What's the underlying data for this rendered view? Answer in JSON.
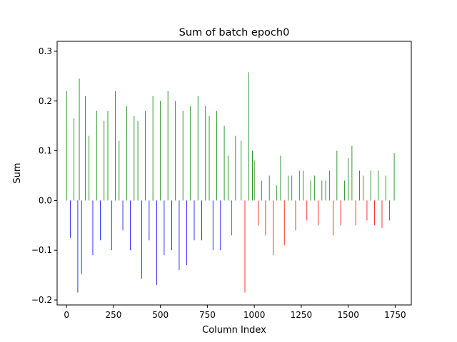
{
  "chart_data": {
    "type": "bar",
    "title": "Sum of batch epoch0",
    "xlabel": "Column Index",
    "ylabel": "Sum",
    "xlim": [
      -50,
      1836
    ],
    "ylim": [
      -0.21,
      0.32
    ],
    "xticks": [
      0,
      250,
      500,
      750,
      1000,
      1250,
      1500,
      1750
    ],
    "yticks": [
      -0.2,
      -0.1,
      0.0,
      0.1,
      0.2,
      0.3
    ],
    "ytick_labels": [
      "−0.2",
      "−0.1",
      "0.0",
      "0.1",
      "0.2",
      "0.3"
    ],
    "n_columns": 1750,
    "grid": false,
    "legend": "none",
    "colors": {
      "positive": "#008000",
      "negative_first_half": "#0000ff",
      "negative_second_half": "#ff0000"
    },
    "series": [
      {
        "name": "",
        "x": [
          0,
          20,
          40,
          60,
          68,
          80,
          100,
          120,
          140,
          160,
          180,
          200,
          220,
          240,
          260,
          280,
          300,
          320,
          340,
          360,
          380,
          400,
          420,
          440,
          460,
          480,
          500,
          520,
          540,
          560,
          580,
          600,
          620,
          640,
          660,
          680,
          700,
          720,
          740,
          760,
          780,
          800,
          820,
          840,
          860,
          880,
          900,
          930,
          950,
          970,
          990,
          1000,
          1020,
          1040,
          1060,
          1080,
          1100,
          1120,
          1140,
          1160,
          1180,
          1200,
          1220,
          1240,
          1260,
          1280,
          1300,
          1320,
          1340,
          1360,
          1380,
          1400,
          1420,
          1440,
          1460,
          1480,
          1500,
          1520,
          1540,
          1560,
          1580,
          1600,
          1620,
          1640,
          1660,
          1680,
          1700,
          1720,
          1745
        ],
        "values": [
          0.22,
          -0.075,
          0.165,
          -0.185,
          0.245,
          -0.148,
          0.21,
          0.13,
          -0.11,
          0.18,
          -0.08,
          0.16,
          0.18,
          -0.1,
          0.22,
          0.12,
          -0.06,
          0.19,
          -0.1,
          0.17,
          0.16,
          -0.157,
          0.18,
          -0.08,
          0.21,
          -0.17,
          0.2,
          -0.11,
          0.22,
          -0.1,
          0.2,
          -0.14,
          0.18,
          -0.13,
          0.19,
          -0.08,
          0.21,
          -0.08,
          0.19,
          0.17,
          -0.1,
          0.18,
          -0.1,
          0.15,
          0.09,
          -0.07,
          0.13,
          0.12,
          -0.185,
          0.258,
          0.1,
          0.08,
          -0.05,
          0.04,
          -0.07,
          0.05,
          -0.11,
          0.03,
          0.09,
          -0.09,
          0.05,
          0.05,
          -0.06,
          0.06,
          0.06,
          -0.04,
          0.04,
          0.05,
          -0.05,
          0.04,
          0.04,
          0.06,
          -0.07,
          0.1,
          -0.05,
          0.04,
          0.085,
          0.11,
          -0.05,
          0.06,
          0.05,
          -0.04,
          0.06,
          -0.05,
          0.06,
          -0.055,
          0.05,
          -0.04,
          0.095
        ]
      }
    ]
  }
}
